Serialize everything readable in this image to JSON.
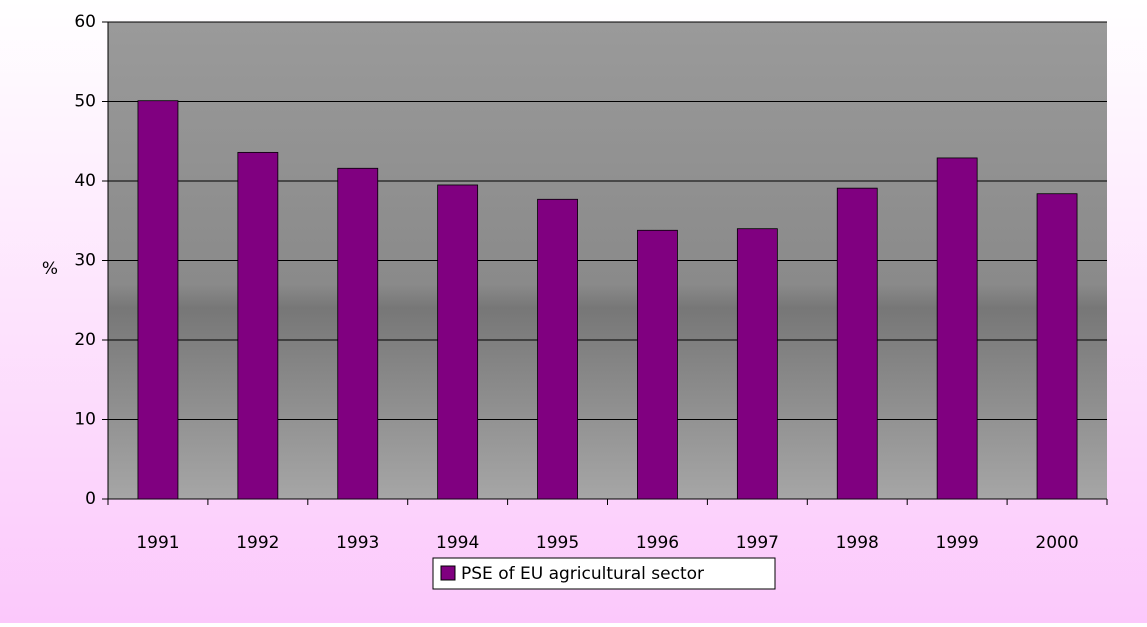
{
  "chart_data": {
    "type": "bar",
    "y_label": "%",
    "categories": [
      "1991",
      "1992",
      "1993",
      "1994",
      "1995",
      "1996",
      "1997",
      "1998",
      "1999",
      "2000"
    ],
    "series": [
      {
        "name": "PSE of EU agricultural sector",
        "color": "#800080",
        "values": [
          50.1,
          43.6,
          41.6,
          39.5,
          37.7,
          33.8,
          34.0,
          39.1,
          42.9,
          38.4
        ]
      }
    ],
    "ylim": [
      0,
      60
    ],
    "yticks": [
      0,
      10,
      20,
      30,
      40,
      50,
      60
    ],
    "grid": true,
    "legend": "bottom"
  }
}
